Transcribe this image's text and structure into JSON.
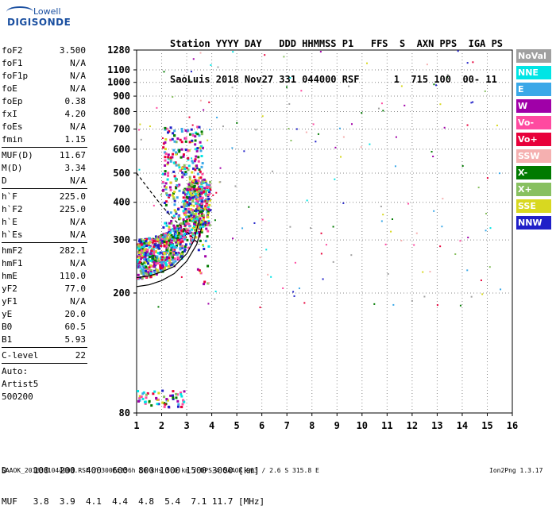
{
  "logo": {
    "line1": "Lowell",
    "line2": "DIGISONDE"
  },
  "header": {
    "line1": "Station YYYY DAY   DDD HHMMSS P1   FFS  S  AXN PPS  IGA PS",
    "line2": "SaoLuis 2018 Nov27 331 044000 RSF      1  715 100  00- 11"
  },
  "params": {
    "group1": [
      {
        "k": "foF2",
        "v": "3.500"
      },
      {
        "k": "foF1",
        "v": "N/A"
      },
      {
        "k": "foF1p",
        "v": "N/A"
      },
      {
        "k": "foE",
        "v": "N/A"
      },
      {
        "k": "foEp",
        "v": "0.38"
      },
      {
        "k": "fxI",
        "v": "4.20"
      },
      {
        "k": "foEs",
        "v": "N/A"
      },
      {
        "k": "fmin",
        "v": "1.15"
      }
    ],
    "group2": [
      {
        "k": "MUF(D)",
        "v": "11.67"
      },
      {
        "k": "M(D)",
        "v": "3.34"
      },
      {
        "k": "D",
        "v": "N/A"
      }
    ],
    "group3": [
      {
        "k": "h`F",
        "v": "225.0"
      },
      {
        "k": "h`F2",
        "v": "225.0"
      },
      {
        "k": "h`E",
        "v": "N/A"
      },
      {
        "k": "h`Es",
        "v": "N/A"
      }
    ],
    "group4": [
      {
        "k": "hmF2",
        "v": "282.1"
      },
      {
        "k": "hmF1",
        "v": "N/A"
      },
      {
        "k": "hmE",
        "v": "110.0"
      },
      {
        "k": "yF2",
        "v": "77.0"
      },
      {
        "k": "yF1",
        "v": "N/A"
      },
      {
        "k": "yE",
        "v": "20.0"
      },
      {
        "k": "B0",
        "v": "60.5"
      },
      {
        "k": "B1",
        "v": "5.93"
      }
    ],
    "group5": [
      {
        "k": "C-level",
        "v": "22"
      }
    ],
    "auto": [
      "Auto:",
      "Artist5",
      "500200"
    ]
  },
  "legend": [
    {
      "label": "NoVal",
      "color": "#a0a0a0"
    },
    {
      "label": "NNE",
      "color": "#00e5e5"
    },
    {
      "label": "E",
      "color": "#3aa8e8"
    },
    {
      "label": "W",
      "color": "#a000a8"
    },
    {
      "label": "Vo-",
      "color": "#ff4aa0"
    },
    {
      "label": "Vo+",
      "color": "#e8003a"
    },
    {
      "label": "SSW",
      "color": "#f5b0b0"
    },
    {
      "label": "X-",
      "color": "#007a00"
    },
    {
      "label": "X+",
      "color": "#88c060"
    },
    {
      "label": "SSE",
      "color": "#d8d820"
    },
    {
      "label": "NNW",
      "color": "#2020c8"
    }
  ],
  "footer": {
    "d_row": "D     100  200  400  600  800 1000 1500 3000 [km]",
    "muf_row": "MUF   3.8  3.9  4.1  4.4  4.8  5.4  7.1 11.7 [MHz]",
    "info": "SAAOK_2018331044000.RSF / 300fx256h 50 kHs 5.0 km / DPS-4 SAAOK 903 / 2.6 S 315.8 E",
    "version": "Ion2Png 1.3.17"
  },
  "chart_data": {
    "type": "scatter",
    "title": "",
    "xlabel": "",
    "ylabel": "",
    "xlim": [
      1,
      16
    ],
    "ylim": [
      80,
      1280
    ],
    "x_ticks": [
      1,
      2,
      3,
      4,
      5,
      6,
      7,
      8,
      9,
      10,
      11,
      12,
      13,
      14,
      15,
      16
    ],
    "y_ticks": [
      80,
      200,
      300,
      400,
      500,
      600,
      700,
      800,
      900,
      1000,
      1100,
      1280
    ],
    "y_axis": "log",
    "grid": "dotted",
    "legend_placement": "right",
    "traces": {
      "o_trace": {
        "x": [
          1.0,
          1.5,
          2.0,
          2.5,
          3.0,
          3.3,
          3.5
        ],
        "y": [
          225,
          228,
          235,
          245,
          270,
          300,
          350
        ],
        "color": "#000000",
        "style": "solid"
      },
      "x_trace": {
        "x": [
          1.0,
          1.5,
          2.0,
          2.5,
          3.0,
          3.4,
          3.6
        ],
        "y": [
          210,
          213,
          220,
          232,
          255,
          290,
          330
        ],
        "color": "#000000",
        "style": "solid"
      },
      "profile": {
        "x": [
          1.0,
          1.5,
          2.0,
          2.5,
          3.0,
          3.5
        ],
        "y": [
          500,
          440,
          390,
          350,
          320,
          290
        ],
        "color": "#000000",
        "style": "dashed"
      }
    },
    "clusters": [
      {
        "name": "F-trace",
        "x": [
          1.0,
          3.9
        ],
        "y": [
          215,
          480
        ],
        "count": 900
      },
      {
        "name": "spread",
        "x": [
          2.0,
          3.6
        ],
        "y": [
          300,
          720
        ],
        "count": 300
      },
      {
        "name": "Es-low",
        "x": [
          1.0,
          2.9
        ],
        "y": [
          84,
          96
        ],
        "count": 60
      },
      {
        "name": "sparse",
        "x": [
          1.0,
          15.5
        ],
        "y": [
          180,
          1280
        ],
        "count": 180
      }
    ]
  }
}
